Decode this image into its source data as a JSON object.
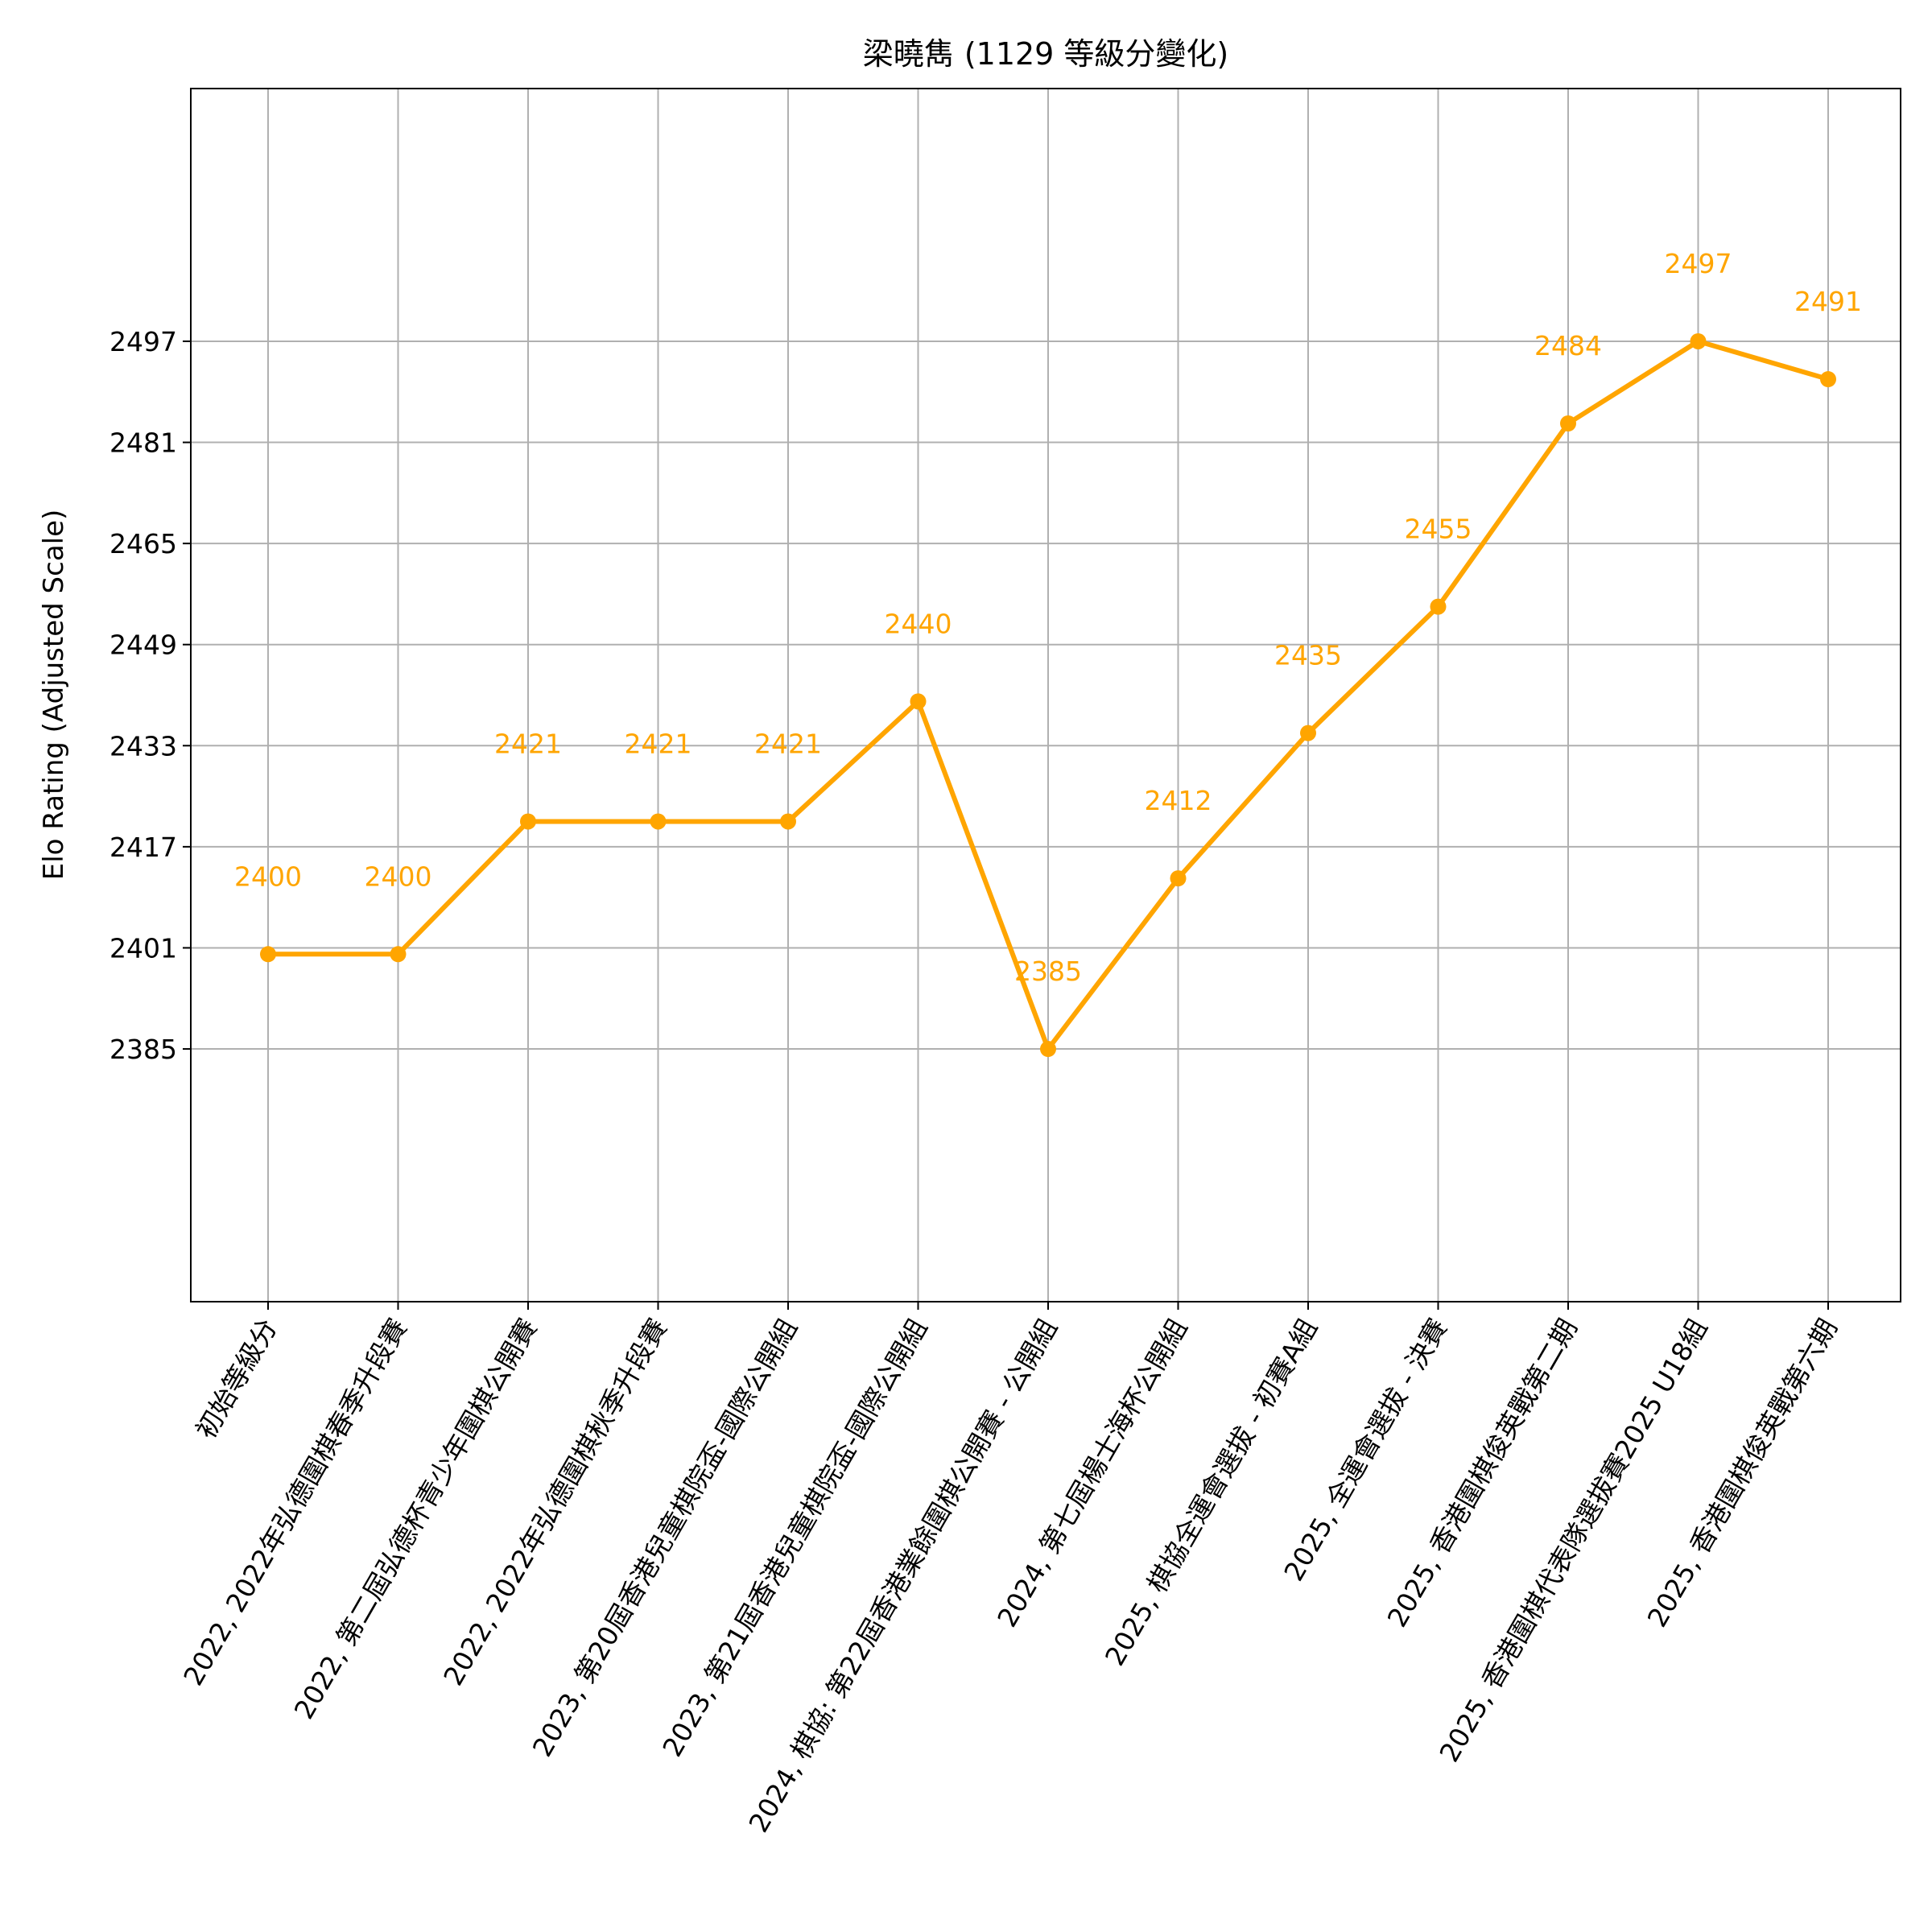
{
  "chart_data": {
    "type": "line",
    "title": "梁曉雋 (1129 等級分變化)",
    "xlabel": "",
    "ylabel": "Elo Rating (Adjusted Scale)",
    "categories": [
      "初始等級分",
      "2022, 2022年弘德圍棋春季升段賽",
      "2022, 第二屆弘德杯青少年圍棋公開賽",
      "2022, 2022年弘德圍棋秋季升段賽",
      "2023, 第20屆香港兒童棋院盃-國際公開組",
      "2023, 第21屆香港兒童棋院盃-國際公開組",
      "2024, 棋協: 第22屆香港業餘圍棋公開賽 - 公開組",
      "2024, 第七屆楊士海杯公開組",
      "2025, 棋協全運會選拔 - 初賽A組",
      "2025, 全運會選拔 - 決賽",
      "2025, 香港圍棋俊英戰第二期",
      "2025, 香港圍棋代表隊選拔賽2025 U18組",
      "2025, 香港圍棋俊英戰第六期"
    ],
    "series": [
      {
        "values": [
          2400,
          2400,
          2421,
          2421,
          2421,
          2440,
          2385,
          2412,
          2435,
          2455,
          2484,
          2497,
          2491
        ]
      }
    ],
    "data_labels": [
      "2400",
      "2400",
      "2421",
      "2421",
      "2421",
      "2440",
      "2385",
      "2412",
      "2435",
      "2455",
      "2484",
      "2497",
      "2491"
    ],
    "yticks": [
      2385,
      2401,
      2417,
      2433,
      2449,
      2465,
      2481,
      2497
    ],
    "ylim": [
      2345,
      2537
    ],
    "grid": true,
    "line_color": "#ffa500"
  }
}
